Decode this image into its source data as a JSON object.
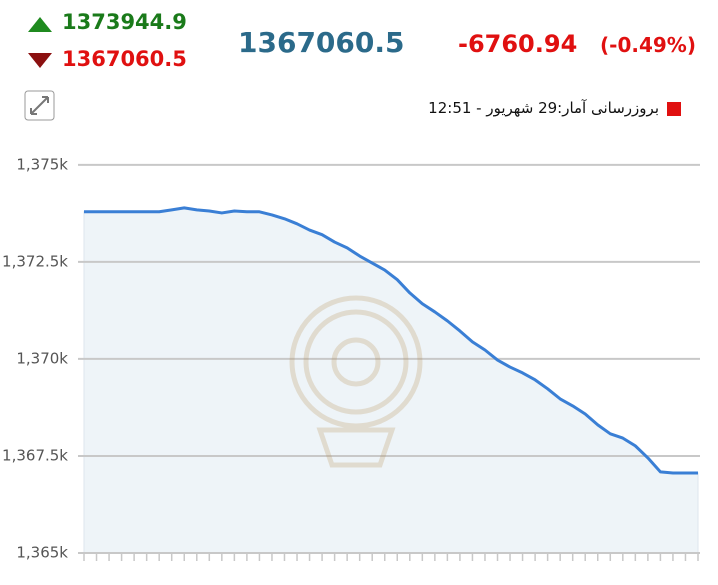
{
  "header": {
    "high": "1373944.9",
    "low": "1367060.5",
    "last": "1367060.5",
    "change": "-6760.94",
    "change_percent": "(-0.49%)",
    "update": "بروزرسانی آمار:29 شهریور - 12:51"
  },
  "chart_data": {
    "type": "area",
    "color": "#3a7fd5",
    "fill": "#eef4f8",
    "values": [
      1373790,
      1373790,
      1373790,
      1373790,
      1373790,
      1373790,
      1373790,
      1373840,
      1373890,
      1373840,
      1373810,
      1373760,
      1373810,
      1373790,
      1373790,
      1373710,
      1373610,
      1373480,
      1373320,
      1373200,
      1373010,
      1372860,
      1372650,
      1372470,
      1372290,
      1372040,
      1371700,
      1371420,
      1371210,
      1370980,
      1370720,
      1370440,
      1370230,
      1369970,
      1369790,
      1369640,
      1369460,
      1369230,
      1368970,
      1368790,
      1368580,
      1368300,
      1368070,
      1367960,
      1367760,
      1367450,
      1367090,
      1367060,
      1367060,
      1367060
    ],
    "ylim": [
      1365000,
      1376000
    ],
    "yticks": [
      {
        "value": 1365000,
        "label": "1,365k"
      },
      {
        "value": 1367500,
        "label": "1,367.5k"
      },
      {
        "value": 1370000,
        "label": "1,370k"
      },
      {
        "value": 1372500,
        "label": "1,372.5k"
      },
      {
        "value": 1375000,
        "label": "1,375k"
      }
    ],
    "grid": true
  }
}
